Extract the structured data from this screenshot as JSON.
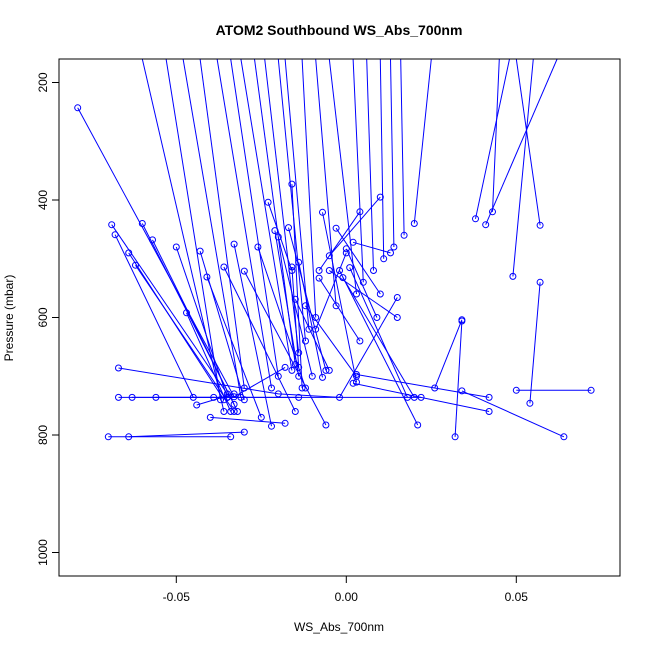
{
  "chart_data": {
    "type": "line",
    "title": "ATOM2 Southbound WS_Abs_700nm",
    "xlabel": "WS_Abs_700nm",
    "ylabel": "Pressure (mbar)",
    "xlim": [
      -0.0845,
      0.0805
    ],
    "ylim": [
      1040,
      160
    ],
    "y_reversed": true,
    "grid": false,
    "legend": "none",
    "xticks": [
      -0.05,
      0.0,
      0.05
    ],
    "xtick_labels": [
      "-0.05",
      "0.00",
      "0.05"
    ],
    "yticks": [
      200,
      400,
      600,
      800,
      1000
    ],
    "ytick_labels": [
      "200",
      "400",
      "600",
      "800",
      "1000"
    ],
    "series_color": "#0000ff",
    "marker": "open-circle",
    "series": [
      {
        "x": [
          -0.079,
          -0.033,
          -0.018
        ],
        "y": [
          243,
          735,
          685
        ]
      },
      {
        "x": [
          -0.069,
          -0.035
        ],
        "y": [
          442,
          730
        ]
      },
      {
        "x": [
          -0.068,
          -0.045
        ],
        "y": [
          459,
          736
        ]
      },
      {
        "x": [
          -0.064,
          -0.036
        ],
        "y": [
          490,
          740
        ]
      },
      {
        "x": [
          -0.062,
          -0.033
        ],
        "y": [
          511,
          760
        ]
      },
      {
        "x": [
          -0.06,
          -0.033
        ],
        "y": [
          440,
          748
        ]
      },
      {
        "x": [
          -0.057,
          -0.032
        ],
        "y": [
          468,
          760
        ]
      },
      {
        "x": [
          -0.07,
          -0.034
        ],
        "y": [
          803,
          803
        ]
      },
      {
        "x": [
          -0.064,
          -0.03
        ],
        "y": [
          803,
          795
        ]
      },
      {
        "x": [
          -0.067,
          -0.039
        ],
        "y": [
          736,
          736
        ]
      },
      {
        "x": [
          -0.063,
          -0.035
        ],
        "y": [
          736,
          736
        ]
      },
      {
        "x": [
          -0.056,
          -0.014
        ],
        "y": [
          736,
          736
        ]
      },
      {
        "x": [
          -0.067,
          -0.02,
          -0.002,
          0.015
        ],
        "y": [
          686,
          730,
          736,
          566
        ]
      },
      {
        "x": [
          -0.05,
          -0.035
        ],
        "y": [
          480,
          736
        ]
      },
      {
        "x": [
          -0.043,
          -0.03
        ],
        "y": [
          487,
          740
        ]
      },
      {
        "x": [
          -0.041,
          -0.025
        ],
        "y": [
          531,
          770
        ]
      },
      {
        "x": [
          -0.047,
          -0.034
        ],
        "y": [
          592,
          760
        ]
      },
      {
        "x": [
          -0.044,
          -0.033
        ],
        "y": [
          749,
          730
        ]
      },
      {
        "x": [
          -0.04,
          -0.018
        ],
        "y": [
          770,
          780
        ]
      },
      {
        "x": [
          -0.036,
          -0.015
        ],
        "y": [
          514,
          760
        ]
      },
      {
        "x": [
          -0.033,
          -0.022
        ],
        "y": [
          475,
          785
        ]
      },
      {
        "x": [
          -0.03,
          -0.006
        ],
        "y": [
          521,
          783
        ]
      },
      {
        "x": [
          -0.026,
          -0.012
        ],
        "y": [
          480,
          720
        ]
      },
      {
        "x": [
          -0.023,
          -0.016
        ],
        "y": [
          404,
          520
        ]
      },
      {
        "x": [
          -0.021,
          -0.014
        ],
        "y": [
          452,
          700
        ]
      },
      {
        "x": [
          -0.02,
          -0.01
        ],
        "y": [
          463,
          700
        ]
      },
      {
        "x": [
          -0.016,
          -0.013
        ],
        "y": [
          373,
          720
        ]
      },
      {
        "x": [
          -0.017,
          -0.006
        ],
        "y": [
          447,
          690
        ]
      },
      {
        "x": [
          -0.016,
          -0.014
        ],
        "y": [
          514,
          685
        ]
      },
      {
        "x": [
          -0.015,
          -0.005
        ],
        "y": [
          569,
          690
        ]
      },
      {
        "x": [
          -0.014,
          -0.007
        ],
        "y": [
          506,
          702
        ]
      },
      {
        "x": [
          -0.012,
          0.003
        ],
        "y": [
          580,
          700
        ]
      },
      {
        "x": [
          -0.009,
          0.0
        ],
        "y": [
          620,
          490
        ]
      },
      {
        "x": [
          -0.008,
          0.004
        ],
        "y": [
          533,
          640
        ]
      },
      {
        "x": [
          -0.008,
          0.004
        ],
        "y": [
          520,
          420
        ]
      },
      {
        "x": [
          -0.007,
          0.003
        ],
        "y": [
          421,
          710
        ]
      },
      {
        "x": [
          -0.005,
          0.01
        ],
        "y": [
          495,
          395
        ]
      },
      {
        "x": [
          -0.005,
          0.015
        ],
        "y": [
          520,
          600
        ]
      },
      {
        "x": [
          -0.003,
          0.01
        ],
        "y": [
          448,
          560
        ]
      },
      {
        "x": [
          -0.002,
          0.021
        ],
        "y": [
          520,
          783
        ]
      },
      {
        "x": [
          -0.001,
          0.02
        ],
        "y": [
          532,
          736
        ]
      },
      {
        "x": [
          0.0,
          0.009
        ],
        "y": [
          483,
          600
        ]
      },
      {
        "x": [
          0.001,
          0.018
        ],
        "y": [
          515,
          736
        ]
      },
      {
        "x": [
          0.002,
          0.013
        ],
        "y": [
          472,
          490
        ]
      },
      {
        "x": [
          -0.035,
          0.022
        ],
        "y": [
          736,
          736
        ]
      },
      {
        "x": [
          0.002,
          0.042
        ],
        "y": [
          712,
          760
        ]
      },
      {
        "x": [
          0.003,
          0.042
        ],
        "y": [
          697,
          736
        ]
      },
      {
        "x": [
          0.034,
          0.026
        ],
        "y": [
          604,
          720
        ]
      },
      {
        "x": [
          0.032,
          0.034
        ],
        "y": [
          803,
          606
        ]
      },
      {
        "x": [
          0.038,
          0.048
        ],
        "y": [
          432,
          160
        ]
      },
      {
        "x": [
          0.041,
          0.062
        ],
        "y": [
          442,
          160
        ]
      },
      {
        "x": [
          0.049,
          0.055
        ],
        "y": [
          530,
          160
        ]
      },
      {
        "x": [
          0.05,
          0.072
        ],
        "y": [
          724,
          724
        ]
      },
      {
        "x": [
          0.054,
          0.057
        ],
        "y": [
          746,
          540
        ]
      },
      {
        "x": [
          0.057,
          0.05
        ],
        "y": [
          443,
          160
        ]
      },
      {
        "x": [
          0.064,
          0.034
        ],
        "y": [
          803,
          725
        ]
      },
      {
        "x": [
          -0.06,
          -0.036
        ],
        "y": [
          160,
          760
        ]
      },
      {
        "x": [
          -0.053,
          -0.037
        ],
        "y": [
          160,
          740
        ]
      },
      {
        "x": [
          -0.048,
          -0.031
        ],
        "y": [
          160,
          736
        ]
      },
      {
        "x": [
          -0.043,
          -0.03
        ],
        "y": [
          160,
          720
        ]
      },
      {
        "x": [
          -0.038,
          -0.022
        ],
        "y": [
          160,
          720
        ]
      },
      {
        "x": [
          -0.034,
          -0.02
        ],
        "y": [
          160,
          700
        ]
      },
      {
        "x": [
          -0.031,
          -0.016
        ],
        "y": [
          160,
          690
        ]
      },
      {
        "x": [
          -0.027,
          -0.015
        ],
        "y": [
          160,
          680
        ]
      },
      {
        "x": [
          -0.024,
          -0.014
        ],
        "y": [
          160,
          660
        ]
      },
      {
        "x": [
          -0.02,
          -0.012
        ],
        "y": [
          160,
          640
        ]
      },
      {
        "x": [
          -0.018,
          -0.011
        ],
        "y": [
          160,
          620
        ]
      },
      {
        "x": [
          -0.013,
          -0.009
        ],
        "y": [
          160,
          600
        ]
      },
      {
        "x": [
          -0.009,
          -0.003
        ],
        "y": [
          160,
          580
        ]
      },
      {
        "x": [
          -0.005,
          0.003
        ],
        "y": [
          160,
          560
        ]
      },
      {
        "x": [
          0.002,
          0.005
        ],
        "y": [
          160,
          540
        ]
      },
      {
        "x": [
          0.006,
          0.008
        ],
        "y": [
          160,
          520
        ]
      },
      {
        "x": [
          0.01,
          0.011
        ],
        "y": [
          160,
          500
        ]
      },
      {
        "x": [
          0.013,
          0.014
        ],
        "y": [
          160,
          480
        ]
      },
      {
        "x": [
          0.016,
          0.017
        ],
        "y": [
          160,
          460
        ]
      },
      {
        "x": [
          0.025,
          0.02
        ],
        "y": [
          160,
          440
        ]
      },
      {
        "x": [
          0.045,
          0.043
        ],
        "y": [
          160,
          420
        ]
      }
    ]
  }
}
